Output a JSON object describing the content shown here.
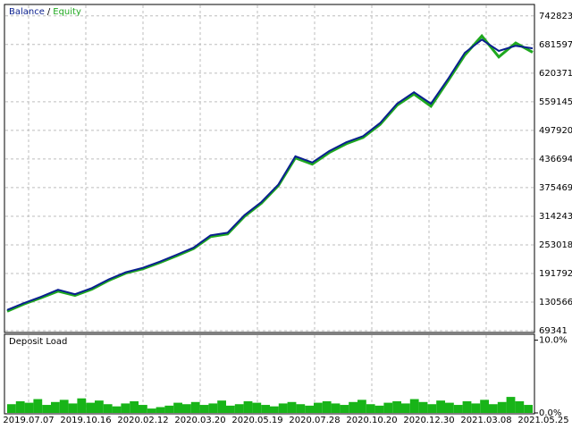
{
  "chart_data": {
    "type": "line",
    "legend": {
      "balance": "Balance",
      "separator": "/",
      "equity": "Equity"
    },
    "series": [
      {
        "name": "Equity",
        "color": "#1fa81f",
        "values": [
          111000,
          126500,
          139800,
          154000,
          145000,
          158200,
          177000,
          192500,
          201800,
          215000,
          229500,
          245000,
          270500,
          276200,
          313800,
          342000,
          379800,
          439000,
          425500,
          450500,
          469200,
          482800,
          510500,
          551800,
          575500,
          549500,
          603500,
          659000,
          700000,
          655000,
          685000,
          665000
        ]
      },
      {
        "name": "Balance",
        "color": "#0a1f8f",
        "values": [
          113693,
          128717,
          141863,
          156887,
          147497,
          160643,
          179423,
          194447,
          203837,
          216983,
          232007,
          247031,
          273323,
          278957,
          316517,
          344687,
          382247,
          442343,
          429197,
          453611,
          472391,
          485537,
          513707,
          555023,
          579437,
          555023,
          607643,
          663983,
          692153,
          667739,
          679007,
          673373
        ]
      }
    ],
    "ylim": [
      65585,
      767240
    ],
    "yticks": [
      69341,
      130566,
      191792,
      253018,
      314243,
      375469,
      436694,
      497920,
      559145,
      620371,
      681597,
      742823
    ],
    "x_labels": [
      "2019.07.07",
      "2019.10.16",
      "2020.02.12",
      "2020.03.20",
      "2020.05.19",
      "2020.07.28",
      "2020.10.20",
      "2020.12.30",
      "2021.03.08",
      "2021.05.25"
    ],
    "grid": true,
    "load": {
      "title": "Deposit Load",
      "color": "#18b418",
      "ylim": [
        0,
        10.2
      ],
      "yticks": [
        {
          "value": 0,
          "label": "0.0%"
        },
        {
          "value": 10,
          "label": "10.0%"
        }
      ],
      "values": [
        1.2,
        1.6,
        1.4,
        1.9,
        1.1,
        1.5,
        1.8,
        1.3,
        2.0,
        1.4,
        1.7,
        1.2,
        0.9,
        1.3,
        1.6,
        1.1,
        0.6,
        0.8,
        1.0,
        1.4,
        1.2,
        1.5,
        1.1,
        1.3,
        1.7,
        1.0,
        1.2,
        1.6,
        1.4,
        1.1,
        0.9,
        1.3,
        1.5,
        1.2,
        1.0,
        1.4,
        1.6,
        1.3,
        1.1,
        1.5,
        1.8,
        1.2,
        1.0,
        1.4,
        1.6,
        1.3,
        1.9,
        1.5,
        1.2,
        1.7,
        1.4,
        1.1,
        1.6,
        1.3,
        1.8,
        1.2,
        1.5,
        2.2,
        1.6,
        1.1
      ]
    }
  }
}
